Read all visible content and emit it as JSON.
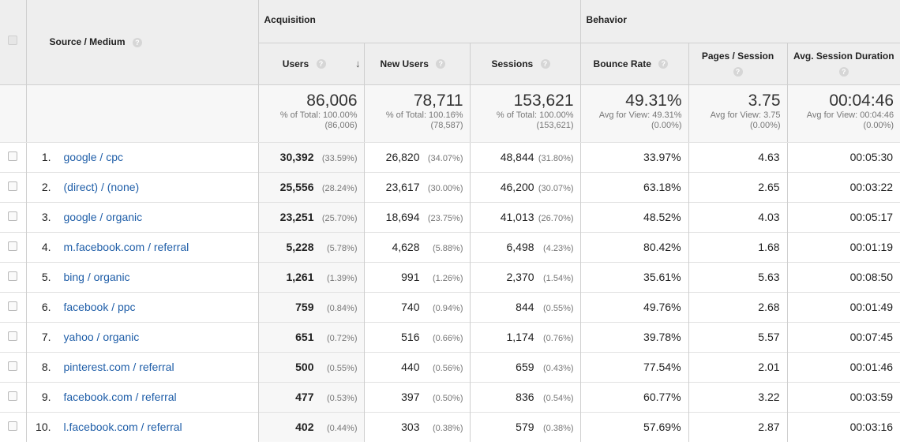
{
  "header": {
    "group_acquisition": "Acquisition",
    "group_behavior": "Behavior",
    "col_source": "Source / Medium",
    "col_users": "Users",
    "col_new_users": "New Users",
    "col_sessions": "Sessions",
    "col_bounce": "Bounce Rate",
    "col_pps": "Pages / Session",
    "col_duration": "Avg. Session Duration",
    "help_glyph": "?",
    "sort_glyph": "↓"
  },
  "totals": {
    "users": "86,006",
    "users_sub1": "% of Total: 100.00%",
    "users_sub2": "(86,006)",
    "new_users": "78,711",
    "new_users_sub1": "% of Total: 100.16%",
    "new_users_sub2": "(78,587)",
    "sessions": "153,621",
    "sessions_sub1": "% of Total: 100.00%",
    "sessions_sub2": "(153,621)",
    "bounce": "49.31%",
    "bounce_sub1": "Avg for View: 49.31%",
    "bounce_sub2": "(0.00%)",
    "pps": "3.75",
    "pps_sub1": "Avg for View: 3.75",
    "pps_sub2": "(0.00%)",
    "duration": "00:04:46",
    "duration_sub1": "Avg for View: 00:04:46",
    "duration_sub2": "(0.00%)"
  },
  "rows": [
    {
      "index": "1.",
      "source": "google / cpc",
      "users": "30,392",
      "users_pct": "(33.59%)",
      "new_users": "26,820",
      "new_users_pct": "(34.07%)",
      "sessions": "48,844",
      "sessions_pct": "(31.80%)",
      "bounce": "33.97%",
      "pps": "4.63",
      "duration": "00:05:30"
    },
    {
      "index": "2.",
      "source": "(direct) / (none)",
      "users": "25,556",
      "users_pct": "(28.24%)",
      "new_users": "23,617",
      "new_users_pct": "(30.00%)",
      "sessions": "46,200",
      "sessions_pct": "(30.07%)",
      "bounce": "63.18%",
      "pps": "2.65",
      "duration": "00:03:22"
    },
    {
      "index": "3.",
      "source": "google / organic",
      "users": "23,251",
      "users_pct": "(25.70%)",
      "new_users": "18,694",
      "new_users_pct": "(23.75%)",
      "sessions": "41,013",
      "sessions_pct": "(26.70%)",
      "bounce": "48.52%",
      "pps": "4.03",
      "duration": "00:05:17"
    },
    {
      "index": "4.",
      "source": "m.facebook.com / referral",
      "users": "5,228",
      "users_pct": "(5.78%)",
      "new_users": "4,628",
      "new_users_pct": "(5.88%)",
      "sessions": "6,498",
      "sessions_pct": "(4.23%)",
      "bounce": "80.42%",
      "pps": "1.68",
      "duration": "00:01:19"
    },
    {
      "index": "5.",
      "source": "bing / organic",
      "users": "1,261",
      "users_pct": "(1.39%)",
      "new_users": "991",
      "new_users_pct": "(1.26%)",
      "sessions": "2,370",
      "sessions_pct": "(1.54%)",
      "bounce": "35.61%",
      "pps": "5.63",
      "duration": "00:08:50"
    },
    {
      "index": "6.",
      "source": "facebook / ppc",
      "users": "759",
      "users_pct": "(0.84%)",
      "new_users": "740",
      "new_users_pct": "(0.94%)",
      "sessions": "844",
      "sessions_pct": "(0.55%)",
      "bounce": "49.76%",
      "pps": "2.68",
      "duration": "00:01:49"
    },
    {
      "index": "7.",
      "source": "yahoo / organic",
      "users": "651",
      "users_pct": "(0.72%)",
      "new_users": "516",
      "new_users_pct": "(0.66%)",
      "sessions": "1,174",
      "sessions_pct": "(0.76%)",
      "bounce": "39.78%",
      "pps": "5.57",
      "duration": "00:07:45"
    },
    {
      "index": "8.",
      "source": "pinterest.com / referral",
      "users": "500",
      "users_pct": "(0.55%)",
      "new_users": "440",
      "new_users_pct": "(0.56%)",
      "sessions": "659",
      "sessions_pct": "(0.43%)",
      "bounce": "77.54%",
      "pps": "2.01",
      "duration": "00:01:46"
    },
    {
      "index": "9.",
      "source": "facebook.com / referral",
      "users": "477",
      "users_pct": "(0.53%)",
      "new_users": "397",
      "new_users_pct": "(0.50%)",
      "sessions": "836",
      "sessions_pct": "(0.54%)",
      "bounce": "60.77%",
      "pps": "3.22",
      "duration": "00:03:59"
    },
    {
      "index": "10.",
      "source": "l.facebook.com / referral",
      "users": "402",
      "users_pct": "(0.44%)",
      "new_users": "303",
      "new_users_pct": "(0.38%)",
      "sessions": "579",
      "sessions_pct": "(0.38%)",
      "bounce": "57.69%",
      "pps": "2.87",
      "duration": "00:03:16"
    }
  ],
  "colors": {
    "link": "#1f5ea8",
    "header_bg": "#eeeeee",
    "border": "#cfcfcf"
  },
  "icons": {
    "help": "help-icon",
    "sort": "sort-desc-icon",
    "checkbox": "checkbox"
  }
}
